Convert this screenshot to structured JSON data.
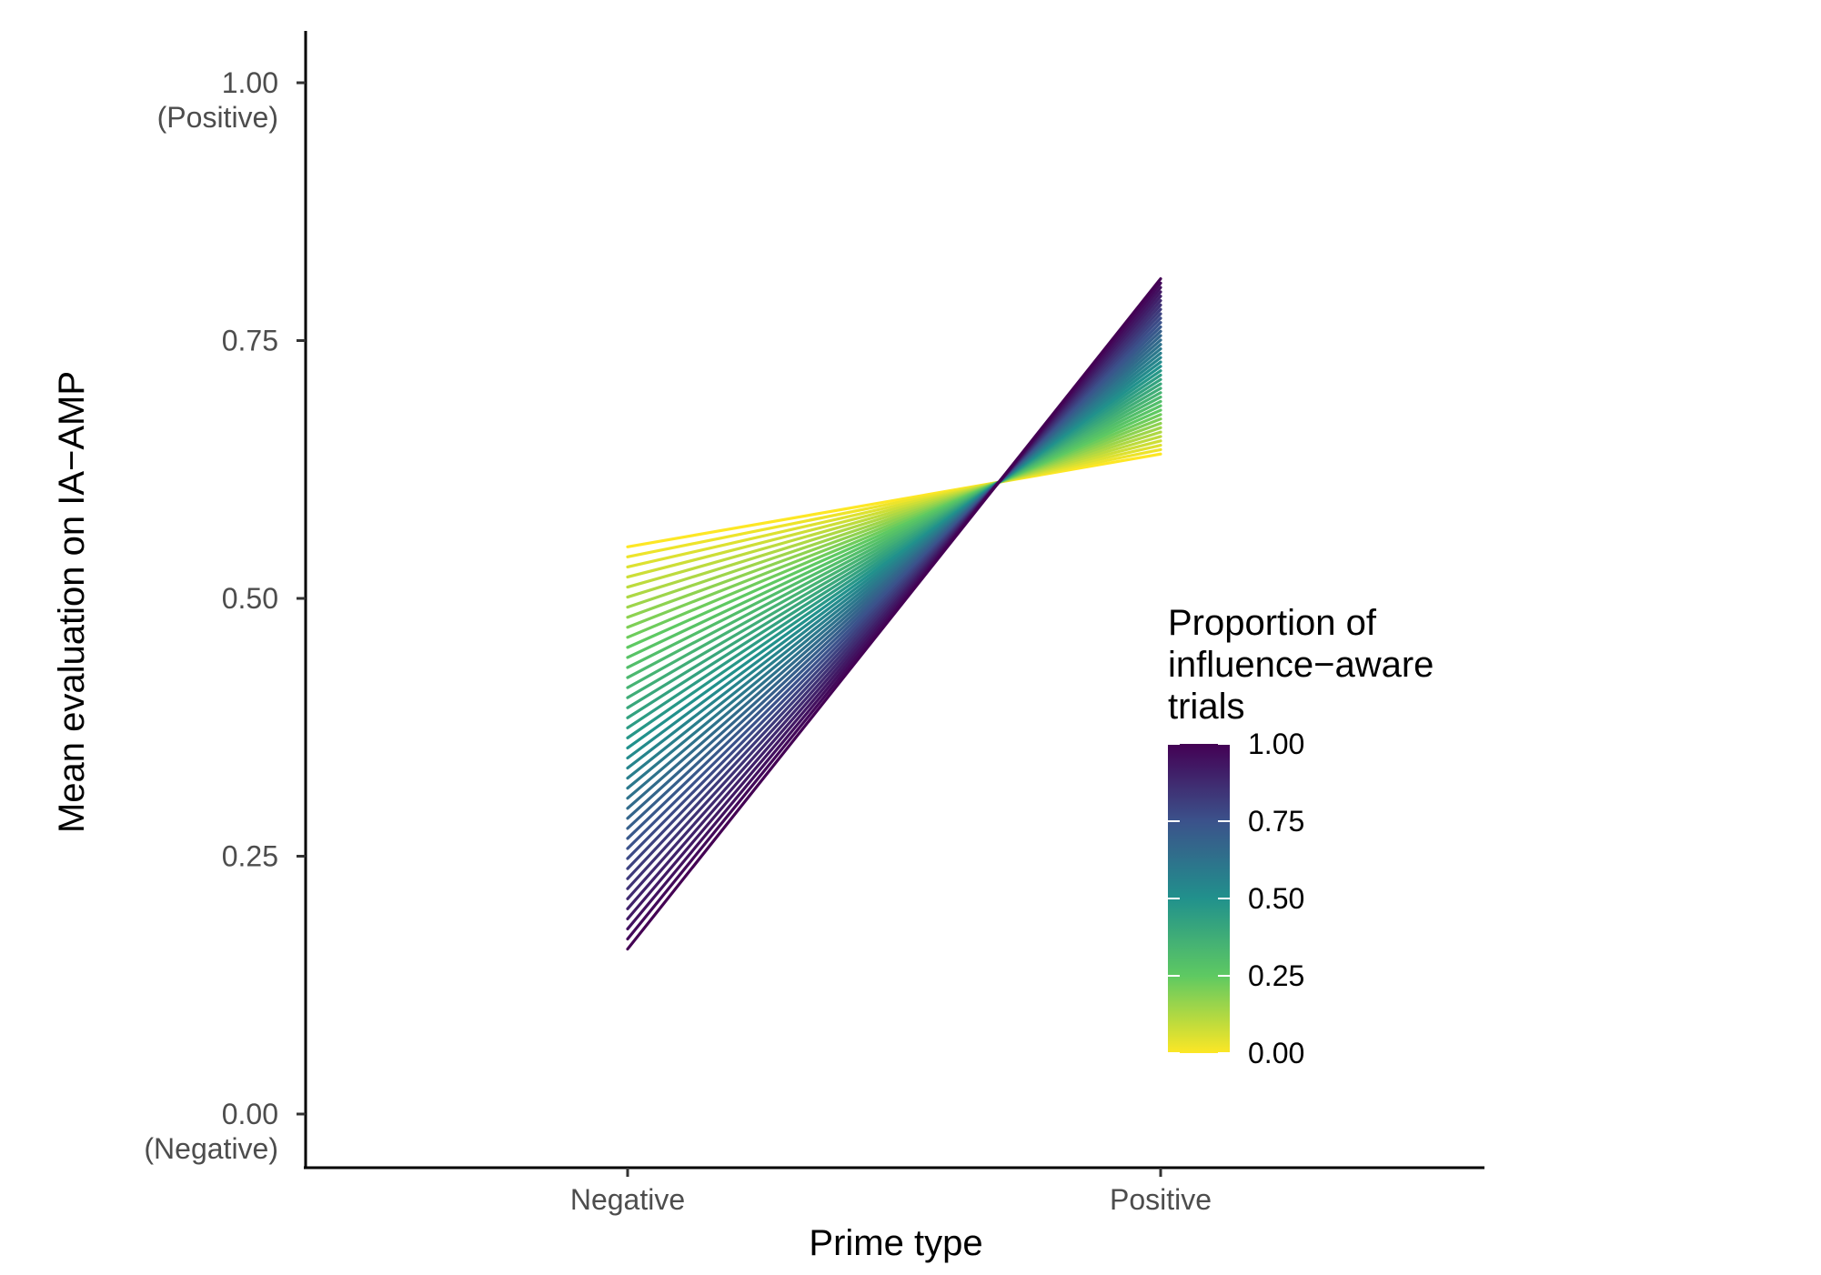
{
  "chart_data": {
    "type": "line",
    "x": [
      "Negative",
      "Positive"
    ],
    "xlabel": "Prime type",
    "ylabel": "Mean evaluation on IA−AMP",
    "ylim": [
      0,
      1
    ],
    "y_ticks": [
      {
        "value": 0.0,
        "label": "0.00",
        "sublabel": "(Negative)"
      },
      {
        "value": 0.25,
        "label": "0.25",
        "sublabel": ""
      },
      {
        "value": 0.5,
        "label": "0.50",
        "sublabel": ""
      },
      {
        "value": 0.75,
        "label": "0.75",
        "sublabel": ""
      },
      {
        "value": 1.0,
        "label": "1.00",
        "sublabel": "(Positive)"
      }
    ],
    "series_rule": {
      "proportion_from": 0.0,
      "proportion_to": 1.0,
      "count": 41,
      "negative_at_0": 0.55,
      "negative_at_1": 0.16,
      "positive_at_0": 0.64,
      "positive_at_1": 0.81
    },
    "legend": {
      "title_lines": [
        "Proportion of",
        "influence−aware",
        "trials"
      ],
      "placement": "inside-right",
      "ticks": [
        {
          "value": 1.0,
          "label": "1.00"
        },
        {
          "value": 0.75,
          "label": "0.75"
        },
        {
          "value": 0.5,
          "label": "0.50"
        },
        {
          "value": 0.25,
          "label": "0.25"
        },
        {
          "value": 0.0,
          "label": "0.00"
        }
      ],
      "colormap": [
        "#440154",
        "#3b528b",
        "#21918c",
        "#5ec962",
        "#fde725"
      ]
    },
    "grid": false
  }
}
